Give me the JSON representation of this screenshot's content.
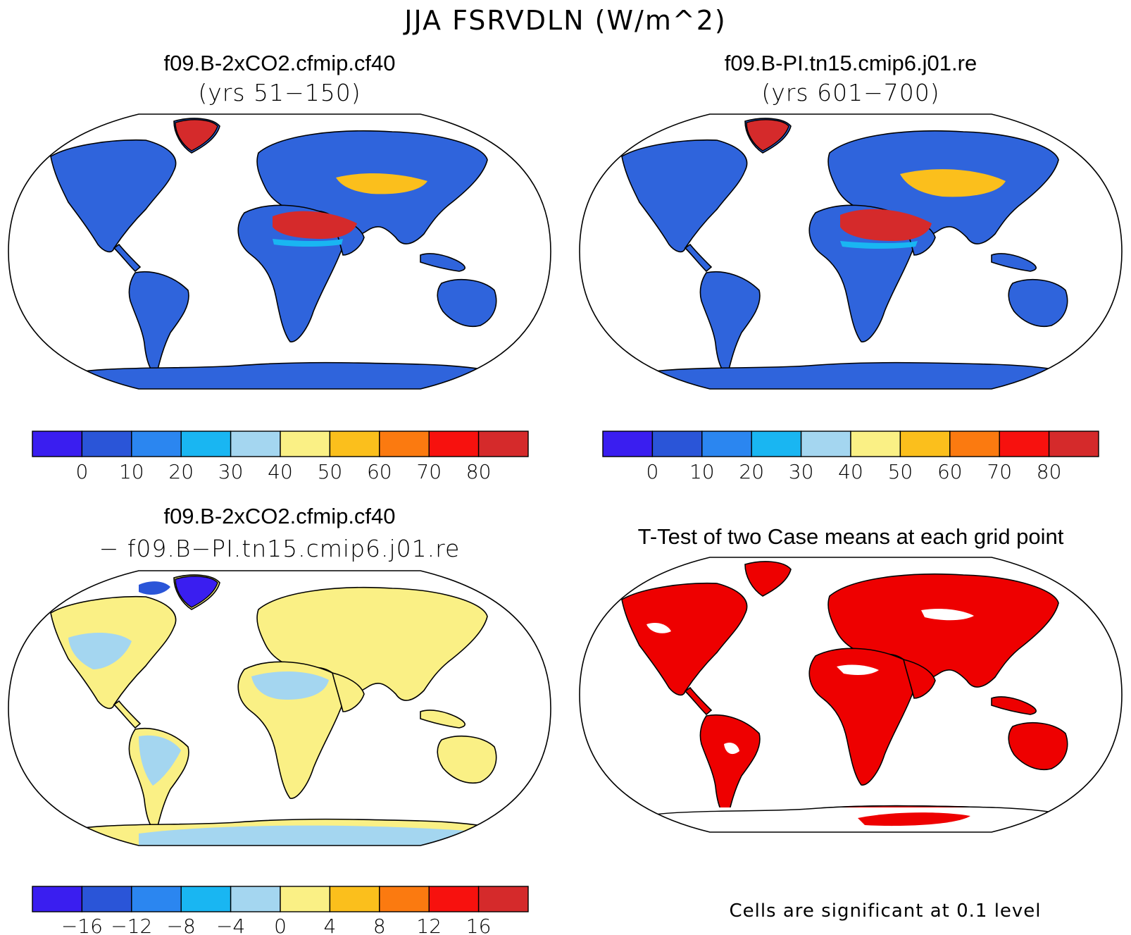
{
  "figure": {
    "title": "JJA FSRVDLN (W/m^2)"
  },
  "panels": [
    {
      "id": "case1",
      "title": "f09.B-2xCO2.cfmip.cf40",
      "subtitle": "(yrs 51−150)",
      "colorbar": "cb_abs"
    },
    {
      "id": "case2",
      "title": "f09.B-PI.tn15.cmip6.j01.re",
      "subtitle": "(yrs 601−700)",
      "colorbar": "cb_abs"
    },
    {
      "id": "diff",
      "title": "f09.B-2xCO2.cfmip.cf40",
      "subtitle": "− f09.B−PI.tn15.cmip6.j01.re",
      "colorbar": "cb_diff"
    },
    {
      "id": "ttest",
      "title": "T-Test of two Case means at each grid point",
      "note": "Cells are significant at 0.1 level"
    }
  ],
  "colorbars": {
    "cb_abs": {
      "colors": [
        "#3a1ef0",
        "#2a55d8",
        "#2b86f0",
        "#19b6f2",
        "#a4d6f0",
        "#faf085",
        "#fbbf1c",
        "#fb7a10",
        "#f7110e",
        "#d52a2b"
      ],
      "tick_labels": [
        "0",
        "10",
        "20",
        "30",
        "40",
        "50",
        "60",
        "70",
        "80"
      ]
    },
    "cb_diff": {
      "colors": [
        "#3a1ef0",
        "#2a55d8",
        "#2b86f0",
        "#19b6f2",
        "#a4d6f0",
        "#faf085",
        "#fbbf1c",
        "#fb7a10",
        "#f7110e",
        "#d52a2b"
      ],
      "tick_labels": [
        "−16",
        "−12",
        "−8",
        "−4",
        "0",
        "4",
        "8",
        "12",
        "16"
      ]
    }
  },
  "colors": {
    "land_abs": "#2f64dc",
    "desert_hot": "#d52a2b",
    "mid_warm": "#fbbf1c",
    "land_diff": "#faf085",
    "diff_light": "#a4d6f0",
    "diff_neg": "#3a1ef0",
    "sig_red": "#ee0000",
    "coast": "#000000"
  }
}
